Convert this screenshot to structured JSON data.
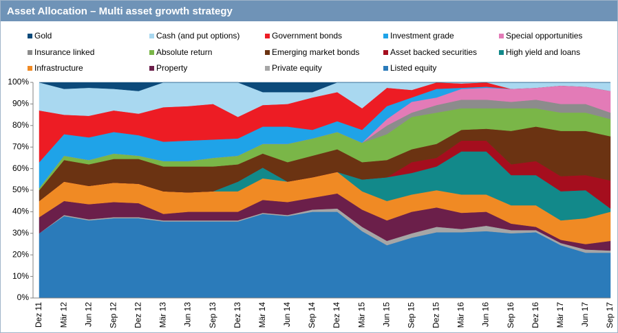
{
  "chart_data": {
    "type": "stacked-area",
    "title": "Asset Allocation –  Multi asset growth strategy",
    "categories": [
      "Dez 11",
      "Mär 12",
      "Jun 12",
      "Sep 12",
      "Dez 12",
      "Mär 13",
      "Jun 13",
      "Sep 13",
      "Dez 13",
      "Mär 14",
      "Jun 14",
      "Sep 14",
      "Dez 14",
      "Mär 15",
      "Jun 15",
      "Sep 15",
      "Dez 15",
      "Mär 16",
      "Jun 16",
      "Sep 16",
      "Dez 16",
      "Mär 17",
      "Jun 17",
      "Sep 17"
    ],
    "ylim": [
      0,
      100
    ],
    "yticks": [
      {
        "value": 0,
        "label": "0%"
      },
      {
        "value": 10,
        "label": "10%"
      },
      {
        "value": 20,
        "label": "20%"
      },
      {
        "value": 30,
        "label": "30%"
      },
      {
        "value": 40,
        "label": "40%"
      },
      {
        "value": 50,
        "label": "50%"
      },
      {
        "value": 60,
        "label": "60%"
      },
      {
        "value": 70,
        "label": "70%"
      },
      {
        "value": 80,
        "label": "80%"
      },
      {
        "value": 90,
        "label": "90%"
      },
      {
        "value": 100,
        "label": "100%"
      }
    ],
    "grid": false,
    "series": [
      {
        "name": "Listed equity",
        "color": "#2b7bba",
        "values": [
          30,
          38,
          36,
          37,
          37,
          35.5,
          35.5,
          35.5,
          35.5,
          39,
          38,
          40,
          40,
          31,
          24.5,
          28,
          30.5,
          30.5,
          31,
          30,
          30.5,
          24.5,
          21,
          21
        ]
      },
      {
        "name": "Private equity",
        "color": "#a6a6a6",
        "values": [
          0,
          0.5,
          0.5,
          0.5,
          0.5,
          0.5,
          0.5,
          0.5,
          0.5,
          0.5,
          0.5,
          1,
          1.5,
          2,
          2,
          2,
          2.5,
          1.5,
          2.5,
          1.5,
          1,
          1,
          1.5,
          1
        ]
      },
      {
        "name": "Property",
        "color": "#6b1f4a",
        "values": [
          7.5,
          6.5,
          7,
          7,
          6.5,
          3,
          4,
          4,
          4,
          6,
          6,
          5.5,
          7,
          8,
          9.5,
          10,
          9,
          7.5,
          6.5,
          3,
          1.5,
          1.5,
          2.5,
          4.5
        ]
      },
      {
        "name": "Infrastructure",
        "color": "#f08a24",
        "values": [
          7.5,
          9,
          8.5,
          9,
          9,
          10.5,
          9,
          9.5,
          9.5,
          10,
          9.5,
          9.5,
          10,
          8.5,
          9,
          8,
          8,
          8.5,
          8,
          8.5,
          10,
          9,
          12,
          13.5
        ]
      },
      {
        "name": "High yield and loans",
        "color": "#12898a",
        "values": [
          0,
          0,
          0,
          0,
          0,
          0,
          0,
          0,
          4.5,
          5,
          0,
          0,
          0,
          5.5,
          11,
          10,
          11,
          20,
          20,
          14,
          14,
          13.5,
          13,
          1.5
        ]
      },
      {
        "name": "Asset backed securities",
        "color": "#a50e1e",
        "values": [
          0,
          0,
          0,
          0,
          0,
          0,
          0,
          0,
          0,
          0,
          0,
          0,
          0,
          0,
          0,
          5,
          4,
          5,
          5,
          5,
          6.5,
          7,
          7,
          13
        ]
      },
      {
        "name": "Emerging market bonds",
        "color": "#6b3312",
        "values": [
          5,
          10,
          10,
          11,
          11.5,
          11.5,
          12,
          11.5,
          8,
          6.5,
          9,
          10,
          10.5,
          8,
          8,
          6,
          6.5,
          5,
          5.5,
          15.5,
          16,
          21,
          20.5,
          20.5
        ]
      },
      {
        "name": "Absolute return",
        "color": "#7ab648",
        "values": [
          1,
          2,
          2,
          2.5,
          1.5,
          2.5,
          2.5,
          4,
          4,
          4.5,
          8.5,
          8,
          8,
          9,
          12,
          15,
          14.5,
          10,
          9.5,
          10.5,
          8.5,
          8.5,
          8.5,
          8
        ]
      },
      {
        "name": "Insurance linked",
        "color": "#8c8c8c",
        "values": [
          0,
          0,
          0,
          0,
          0,
          0,
          0,
          0,
          0,
          0,
          0,
          0,
          0,
          0,
          4,
          2,
          3.5,
          4,
          4,
          3,
          4,
          4,
          4,
          3
        ]
      },
      {
        "name": "Special opportunities",
        "color": "#e37bb7",
        "values": [
          0,
          0,
          0,
          0,
          0,
          0,
          0,
          0,
          0,
          0,
          0,
          0,
          0,
          0,
          3,
          5,
          3.5,
          5,
          5.5,
          6,
          5.5,
          8.5,
          8,
          10
        ]
      },
      {
        "name": "Investment grade",
        "color": "#1fa3e8",
        "values": [
          12,
          10,
          10.5,
          10,
          9.5,
          9,
          9.5,
          8.5,
          8,
          8,
          8,
          4,
          5,
          6,
          6,
          2,
          4,
          0.5,
          0.5,
          0,
          0,
          0,
          0,
          0
        ]
      },
      {
        "name": "Government bonds",
        "color": "#ed1c24",
        "values": [
          24,
          9,
          10,
          10,
          10,
          16,
          16,
          16.5,
          10,
          10,
          10.5,
          15,
          13.5,
          10,
          8.5,
          3.5,
          3,
          2,
          2,
          0,
          0,
          0,
          0,
          0
        ]
      },
      {
        "name": "Cash (and put options)",
        "color": "#a9d8f0",
        "values": [
          13,
          12,
          13,
          10,
          10.5,
          11.5,
          11,
          10,
          16,
          6,
          5.5,
          2.5,
          4.5,
          12,
          2.5,
          3.5,
          0,
          0.5,
          0,
          3,
          2.5,
          1.5,
          2,
          4
        ]
      },
      {
        "name": "Gold",
        "color": "#0c4a7a",
        "values": [
          0,
          3,
          2.5,
          3,
          4,
          0,
          0,
          0,
          0,
          4.5,
          4.5,
          4.5,
          0,
          0,
          0,
          0,
          0,
          0,
          0,
          0,
          0,
          0,
          0,
          0
        ]
      }
    ]
  }
}
